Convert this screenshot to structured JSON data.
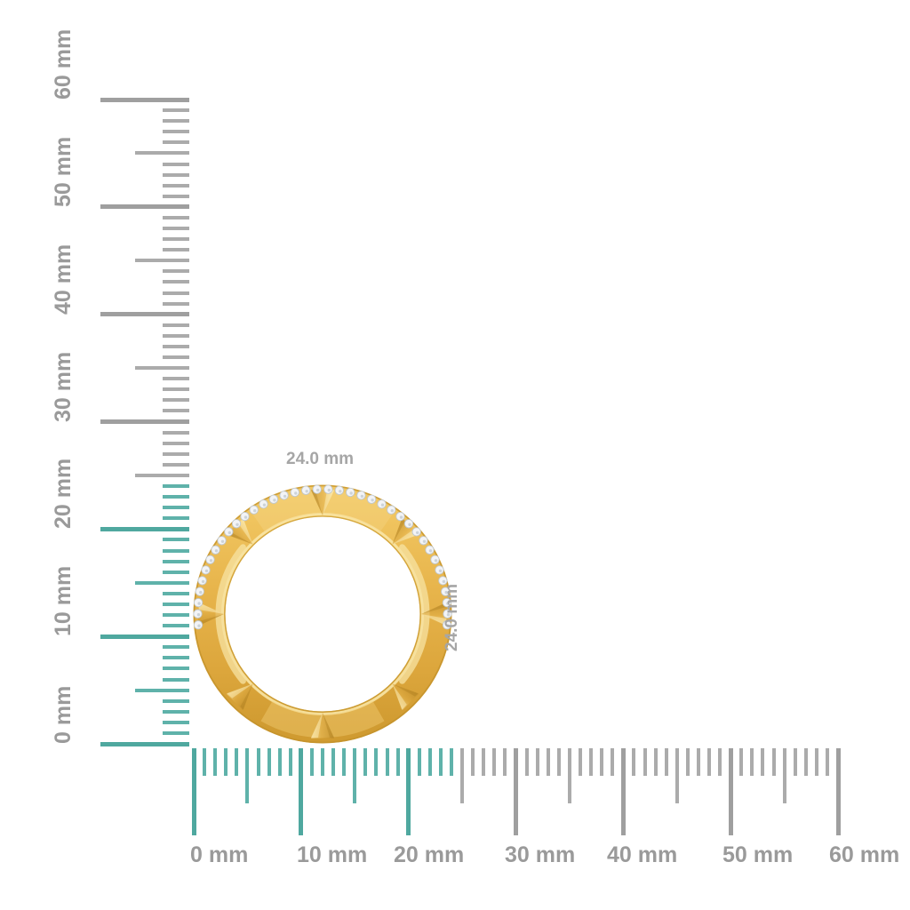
{
  "canvas": {
    "background": "#ffffff"
  },
  "rulers": {
    "unit": "mm",
    "min_mm": 0,
    "max_mm": 60,
    "major_step_mm": 10,
    "medium_step_mm": 5,
    "minor_step_mm": 1,
    "highlight_max_mm": 24,
    "colors": {
      "highlight": "#5fb2aa",
      "highlight_major": "#4fa89f",
      "normal": "#ababab",
      "normal_major": "#9f9f9f",
      "label": "#9a9a9a"
    },
    "vertical": {
      "labels": [
        "0 mm",
        "10 mm",
        "20 mm",
        "30 mm",
        "40 mm",
        "50 mm",
        "60 mm"
      ]
    },
    "horizontal": {
      "labels": [
        "0 mm",
        "10 mm",
        "20 mm",
        "30 mm",
        "40 mm",
        "50 mm",
        "60 mm"
      ]
    }
  },
  "ring": {
    "width_label": "24.0 mm",
    "height_label": "24.0 mm",
    "label_color": "#a6a6a6",
    "diamond_count": 38,
    "colors": {
      "band_gradient": [
        "#f2c863",
        "#e7b44b",
        "#dca63c",
        "#d09b31"
      ],
      "gold_light": "#f8e6a6",
      "gold_mid": "#e7b44b",
      "gold_deep": "#c3922c",
      "diamond": "#f3f4f6",
      "diamond_edge": "#bfc7ce",
      "diamond_facet": "#ccd3d9"
    }
  }
}
